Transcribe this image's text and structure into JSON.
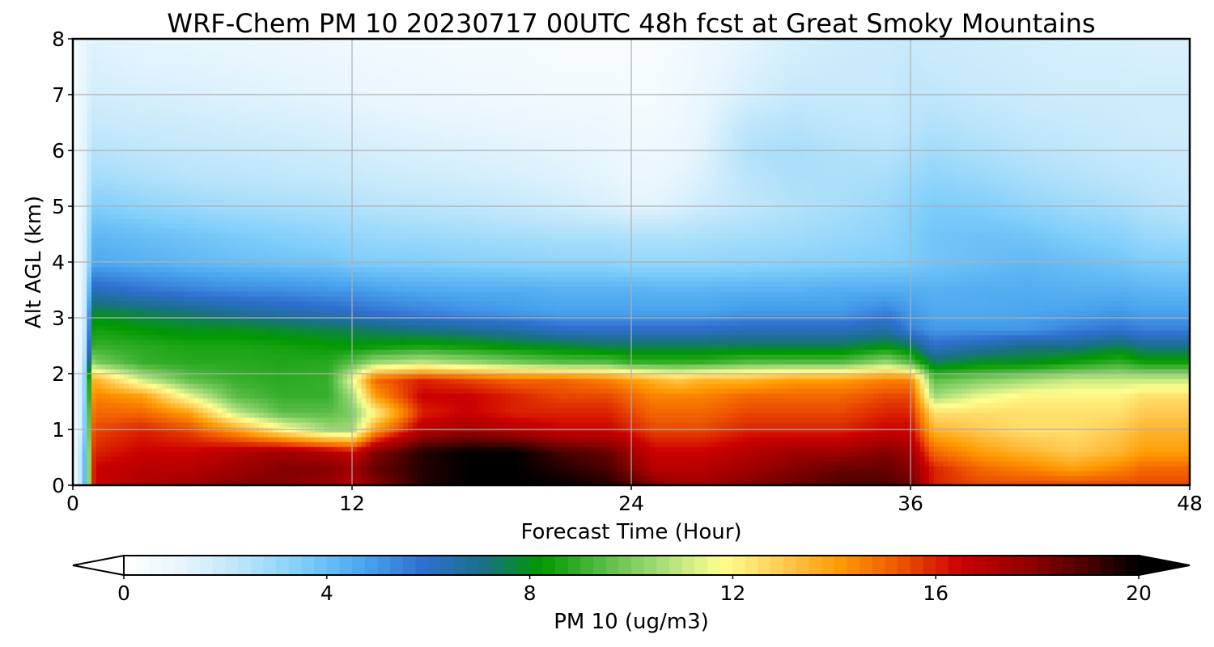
{
  "chart_data": {
    "type": "heatmap",
    "title": "WRF-Chem PM 10  20230717 00UTC 48h fcst at Great Smoky Mountains",
    "xlabel": "Forecast Time (Hour)",
    "ylabel": "Alt AGL (km)",
    "xlim": [
      0,
      48
    ],
    "ylim": [
      0,
      8
    ],
    "xticks": [
      "0",
      "12",
      "24",
      "36",
      "48"
    ],
    "yticks": [
      "0",
      "1",
      "2",
      "3",
      "4",
      "5",
      "6",
      "7",
      "8"
    ],
    "grid": true,
    "colorbar": {
      "label": "PM 10  (ug/m3)",
      "ticks": [
        "0",
        "4",
        "8",
        "12",
        "16",
        "20"
      ],
      "range": [
        0,
        20
      ],
      "extend": "both",
      "colors": [
        "#ffffff",
        "#e6f5fd",
        "#b9e4fa",
        "#7fcefb",
        "#4aa6ee",
        "#2f6fd0",
        "#1a6f8a",
        "#009900",
        "#55bb44",
        "#a6dd7a",
        "#ffff90",
        "#ffcc55",
        "#ff9900",
        "#ee5500",
        "#cc0000",
        "#990000",
        "#550000",
        "#000000"
      ]
    },
    "x": [
      0,
      0.3,
      0.6,
      0.8,
      1,
      3,
      5,
      7,
      9,
      11,
      12,
      13,
      15,
      17,
      19,
      21,
      23,
      24,
      25,
      26,
      27,
      29,
      31,
      33,
      35,
      36,
      37,
      39,
      41,
      43,
      45,
      46,
      48
    ],
    "y": [
      0,
      0.3,
      0.6,
      1,
      1.3,
      1.6,
      1.9,
      2.2,
      2.5,
      2.8,
      3.1,
      3.5,
      4,
      4.5,
      5,
      5.5,
      6,
      6.5,
      7,
      7.5,
      8
    ],
    "values": [
      [
        0.5,
        2.0,
        5.0,
        15.5,
        16.5,
        17.0,
        17.5,
        18.0,
        18.0,
        17.5,
        17.0,
        18.0,
        19.5,
        20.0,
        20.0,
        20.0,
        19.5,
        19.0,
        18.0,
        17.5,
        17.5,
        18.0,
        18.5,
        19.0,
        19.0,
        18.5,
        16.0,
        15.5,
        15.5,
        15.5,
        15.5,
        15.5,
        15.5
      ],
      [
        0.5,
        2.0,
        5.0,
        15.5,
        16.5,
        17.0,
        17.0,
        17.5,
        18.0,
        18.0,
        17.5,
        18.5,
        19.5,
        20.0,
        20.0,
        19.5,
        19.0,
        18.0,
        17.0,
        17.0,
        17.0,
        17.5,
        18.0,
        18.5,
        18.5,
        18.0,
        16.0,
        15.0,
        14.5,
        14.0,
        14.5,
        15.0,
        15.0
      ],
      [
        0.5,
        2.0,
        5.0,
        15.5,
        16.0,
        16.5,
        16.5,
        17.0,
        17.5,
        17.0,
        16.5,
        18.0,
        19.5,
        20.0,
        20.0,
        19.0,
        18.5,
        17.5,
        16.5,
        16.5,
        16.5,
        17.0,
        17.5,
        17.5,
        18.0,
        17.5,
        15.0,
        14.0,
        13.5,
        13.0,
        13.5,
        14.0,
        14.0
      ],
      [
        0.5,
        1.5,
        4.5,
        15.0,
        15.5,
        16.0,
        15.5,
        14.0,
        12.0,
        10.5,
        10.5,
        14.0,
        17.0,
        17.5,
        17.0,
        16.5,
        16.5,
        16.0,
        15.5,
        15.5,
        15.5,
        16.0,
        16.0,
        16.0,
        16.5,
        16.5,
        13.5,
        13.0,
        12.5,
        12.5,
        13.0,
        13.5,
        13.5
      ],
      [
        0.5,
        1.5,
        4.5,
        14.5,
        15.0,
        15.0,
        14.0,
        11.0,
        9.5,
        9.5,
        10.0,
        12.0,
        16.0,
        16.5,
        16.0,
        16.0,
        16.0,
        15.5,
        15.0,
        15.0,
        15.0,
        15.5,
        15.5,
        15.5,
        16.0,
        16.0,
        12.5,
        12.5,
        12.5,
        12.5,
        12.5,
        13.0,
        13.0
      ],
      [
        0.5,
        1.5,
        4.0,
        14.0,
        14.5,
        14.0,
        11.5,
        9.5,
        9.0,
        9.0,
        10.5,
        14.0,
        16.5,
        16.5,
        16.0,
        15.5,
        15.5,
        15.0,
        14.5,
        14.5,
        14.5,
        15.0,
        15.0,
        15.0,
        15.5,
        15.5,
        10.5,
        11.5,
        12.0,
        12.0,
        12.0,
        12.5,
        12.5
      ],
      [
        0.5,
        1.5,
        4.0,
        13.5,
        13.5,
        11.0,
        9.5,
        9.0,
        8.8,
        9.0,
        11.5,
        15.0,
        16.0,
        15.5,
        15.0,
        15.0,
        14.5,
        14.0,
        13.5,
        13.0,
        13.5,
        13.5,
        14.0,
        14.0,
        14.5,
        14.5,
        9.5,
        10.0,
        10.5,
        11.0,
        11.0,
        11.0,
        11.0
      ],
      [
        0.5,
        1.2,
        3.5,
        10.5,
        10.0,
        9.0,
        8.8,
        8.8,
        8.7,
        8.8,
        9.5,
        10.5,
        11.0,
        10.5,
        10.0,
        9.5,
        9.5,
        9.0,
        9.0,
        9.0,
        9.0,
        9.5,
        9.5,
        9.5,
        10.5,
        9.5,
        7.5,
        8.0,
        8.0,
        8.5,
        9.0,
        8.5,
        8.5
      ],
      [
        0.5,
        1.0,
        3.0,
        8.8,
        9.0,
        8.8,
        8.6,
        8.6,
        8.5,
        8.3,
        8.2,
        8.3,
        8.5,
        8.3,
        8.0,
        7.8,
        7.5,
        7.5,
        7.5,
        7.5,
        7.5,
        7.5,
        7.5,
        7.5,
        8.0,
        7.5,
        6.0,
        6.5,
        7.0,
        7.0,
        7.5,
        7.0,
        7.0
      ],
      [
        0.5,
        1.0,
        2.5,
        8.3,
        8.5,
        8.2,
        8.0,
        8.0,
        7.8,
        7.6,
        7.5,
        7.3,
        7.0,
        6.8,
        6.5,
        6.0,
        6.0,
        6.0,
        6.0,
        6.0,
        6.0,
        6.2,
        6.2,
        6.2,
        6.5,
        5.5,
        5.0,
        5.0,
        5.0,
        5.5,
        5.8,
        5.5,
        5.5
      ],
      [
        0.5,
        1.0,
        2.5,
        7.5,
        7.8,
        7.5,
        7.2,
        6.8,
        6.5,
        6.2,
        6.0,
        5.8,
        5.5,
        5.2,
        5.0,
        4.8,
        4.8,
        4.8,
        4.8,
        4.8,
        4.8,
        5.0,
        5.0,
        5.0,
        5.5,
        5.0,
        4.6,
        4.6,
        4.7,
        4.8,
        5.0,
        4.8,
        4.8
      ],
      [
        0.5,
        1.0,
        2.2,
        6.2,
        6.2,
        5.8,
        5.5,
        5.3,
        5.2,
        5.0,
        5.0,
        4.8,
        4.6,
        4.5,
        4.5,
        4.4,
        4.4,
        4.4,
        4.3,
        4.3,
        4.3,
        4.4,
        4.4,
        4.5,
        4.5,
        4.5,
        4.4,
        4.5,
        4.5,
        4.4,
        4.4,
        4.3,
        4.2
      ],
      [
        0.5,
        1.0,
        2.0,
        4.5,
        4.6,
        4.4,
        4.2,
        4.0,
        3.9,
        3.8,
        3.6,
        3.5,
        3.5,
        3.4,
        3.3,
        3.2,
        3.2,
        3.1,
        3.1,
        3.1,
        3.1,
        3.2,
        3.3,
        3.4,
        3.5,
        3.6,
        3.8,
        4.0,
        4.2,
        4.0,
        3.8,
        3.6,
        3.5
      ],
      [
        0.5,
        1.0,
        1.8,
        4.0,
        4.2,
        4.0,
        3.8,
        3.6,
        3.4,
        3.2,
        3.1,
        3.0,
        2.9,
        2.8,
        2.7,
        2.6,
        2.6,
        2.5,
        2.5,
        2.5,
        2.6,
        2.7,
        2.8,
        3.0,
        3.2,
        3.5,
        3.8,
        3.9,
        3.8,
        3.5,
        3.3,
        3.0,
        2.8
      ],
      [
        0.5,
        1.0,
        1.6,
        3.4,
        3.5,
        3.2,
        3.0,
        2.8,
        2.7,
        2.6,
        2.5,
        2.4,
        2.3,
        2.2,
        2.0,
        1.8,
        1.5,
        1.3,
        1.3,
        1.5,
        1.8,
        2.2,
        2.5,
        2.7,
        3.0,
        3.3,
        3.6,
        3.5,
        3.2,
        2.9,
        2.7,
        2.5,
        2.3
      ],
      [
        0.5,
        1.0,
        1.5,
        2.8,
        2.8,
        2.6,
        2.4,
        2.3,
        2.2,
        2.1,
        2.0,
        1.9,
        1.8,
        1.7,
        1.6,
        1.4,
        1.2,
        1.0,
        1.0,
        1.2,
        1.5,
        2.3,
        2.6,
        2.6,
        2.7,
        3.0,
        3.2,
        3.0,
        2.7,
        2.5,
        2.3,
        2.2,
        2.0
      ],
      [
        0.5,
        1.0,
        1.4,
        2.4,
        2.4,
        2.2,
        2.1,
        2.0,
        1.9,
        1.8,
        1.7,
        1.6,
        1.5,
        1.4,
        1.3,
        1.2,
        1.0,
        0.8,
        0.8,
        1.0,
        1.3,
        2.5,
        2.7,
        2.5,
        2.4,
        2.6,
        2.8,
        2.6,
        2.4,
        2.2,
        2.0,
        2.0,
        1.9
      ],
      [
        0.5,
        1.0,
        1.3,
        2.1,
        2.0,
        1.9,
        1.8,
        1.7,
        1.6,
        1.5,
        1.4,
        1.3,
        1.2,
        1.1,
        1.0,
        0.9,
        0.8,
        0.6,
        0.6,
        0.8,
        1.1,
        2.2,
        2.4,
        2.2,
        2.1,
        2.3,
        2.5,
        2.3,
        2.1,
        2.0,
        1.9,
        1.8,
        1.8
      ],
      [
        0.5,
        0.9,
        1.2,
        1.8,
        1.7,
        1.6,
        1.5,
        1.4,
        1.3,
        1.2,
        1.1,
        1.0,
        0.9,
        0.8,
        0.7,
        0.6,
        0.6,
        0.5,
        0.5,
        0.7,
        1.0,
        1.6,
        2.0,
        2.0,
        2.0,
        2.2,
        2.2,
        2.0,
        1.9,
        1.8,
        1.8,
        1.8,
        1.8
      ],
      [
        0.5,
        0.9,
        1.2,
        1.6,
        1.5,
        1.3,
        1.3,
        1.2,
        1.1,
        1.0,
        0.9,
        0.8,
        0.7,
        0.6,
        0.6,
        0.5,
        0.5,
        0.5,
        0.5,
        0.6,
        0.9,
        1.4,
        1.8,
        1.9,
        2.0,
        2.1,
        2.0,
        1.9,
        1.8,
        1.7,
        1.7,
        1.6,
        1.6
      ],
      [
        0.5,
        0.9,
        1.1,
        1.4,
        1.3,
        1.2,
        1.1,
        1.0,
        0.9,
        0.8,
        0.7,
        0.6,
        0.6,
        0.5,
        0.5,
        0.4,
        0.4,
        0.4,
        0.4,
        0.5,
        0.8,
        1.2,
        1.6,
        1.8,
        1.9,
        2.0,
        1.9,
        1.8,
        1.7,
        1.6,
        1.6,
        1.5,
        1.5
      ]
    ]
  }
}
